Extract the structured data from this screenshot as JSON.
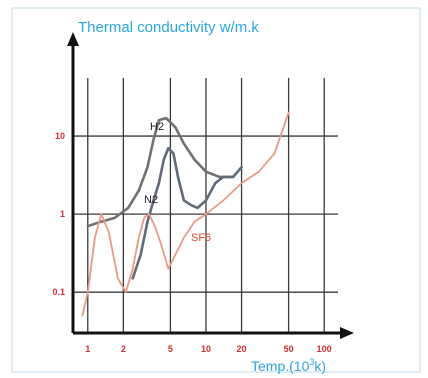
{
  "chart_data": {
    "type": "line",
    "title": "Thermal conductivity w/m.k",
    "xlabel": "Temp.(10",
    "xlabel_sup": "3",
    "xlabel_suffix": "k)",
    "xscale": "log",
    "yscale": "log",
    "x_ticks": [
      "1",
      "2",
      "5",
      "10",
      "20",
      "50",
      "100"
    ],
    "y_ticks": [
      "0.1",
      "1",
      "10"
    ],
    "xlim": [
      0.75,
      150
    ],
    "ylim": [
      0.03,
      100
    ],
    "grid": true,
    "colors": {
      "axes": "#111111",
      "grid": "#3a3a3a",
      "title": "#2aa7df",
      "ticks": "#d32f2f"
    },
    "series": [
      {
        "name": "H2",
        "color": "#707070",
        "x": [
          1.0,
          1.3,
          1.7,
          2.2,
          2.7,
          3.2,
          3.6,
          4.0,
          4.6,
          5.5,
          6.5,
          8.0,
          10.0,
          13.0,
          16.0
        ],
        "y": [
          0.7,
          0.8,
          0.9,
          1.2,
          2.0,
          4.0,
          9.0,
          16.0,
          17.0,
          13.0,
          8.0,
          5.0,
          3.5,
          3.0,
          3.0
        ]
      },
      {
        "name": "N2",
        "color": "#606a78",
        "x": [
          2.4,
          2.8,
          3.2,
          3.6,
          4.0,
          4.4,
          4.8,
          5.3,
          5.8,
          6.5,
          7.5,
          8.5,
          10.0,
          12.0,
          14.0,
          17.0,
          20.0
        ],
        "y": [
          0.15,
          0.3,
          0.8,
          1.5,
          2.5,
          5.0,
          7.0,
          6.0,
          3.0,
          1.5,
          1.3,
          1.2,
          1.5,
          2.5,
          3.0,
          3.0,
          4.0
        ]
      },
      {
        "name": "SF6",
        "color": "#e99a85",
        "x": [
          0.9,
          1.0,
          1.15,
          1.3,
          1.5,
          1.8,
          2.1,
          2.4,
          2.7,
          3.0,
          3.3,
          3.7,
          4.2,
          4.8,
          5.5,
          6.5,
          8.0,
          10.0,
          14.0,
          20.0,
          28.0,
          38.0,
          50.0
        ],
        "y": [
          0.05,
          0.1,
          0.5,
          1.0,
          0.6,
          0.15,
          0.1,
          0.2,
          0.5,
          0.9,
          1.0,
          0.7,
          0.4,
          0.2,
          0.3,
          0.5,
          0.8,
          1.0,
          1.5,
          2.5,
          3.5,
          6.0,
          20.0
        ]
      }
    ]
  }
}
